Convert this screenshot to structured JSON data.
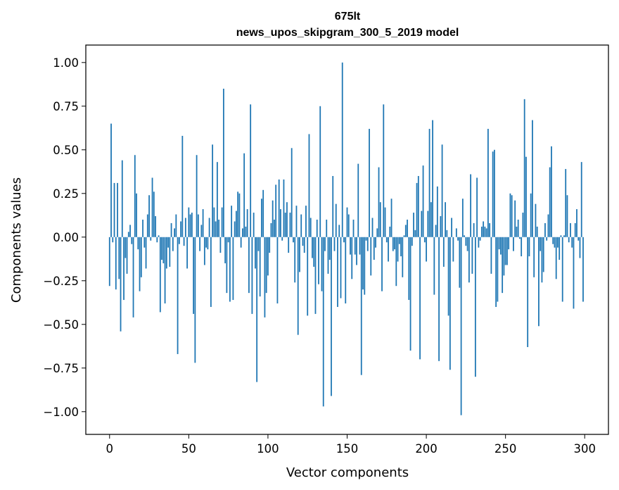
{
  "chart_data": {
    "type": "bar",
    "title": "675lt",
    "subtitle": "news_upos_skipgram_300_5_2019 model",
    "xlabel": "Vector components",
    "ylabel": "Components values",
    "xlim": [
      -15,
      315
    ],
    "ylim": [
      -1.13,
      1.1
    ],
    "xticks": [
      0,
      50,
      100,
      150,
      200,
      250,
      300
    ],
    "yticks": [
      -1.0,
      -0.75,
      -0.5,
      -0.25,
      0.0,
      0.25,
      0.5,
      0.75,
      1.0
    ],
    "ytick_labels": [
      "−1.00",
      "−0.75",
      "−0.50",
      "−0.25",
      "0.00",
      "0.25",
      "0.50",
      "0.75",
      "1.00"
    ],
    "bar_color": "#1f77b4",
    "grid": false,
    "values": [
      -0.28,
      0.65,
      -0.03,
      0.31,
      -0.3,
      0.31,
      -0.24,
      -0.54,
      0.44,
      -0.36,
      -0.12,
      -0.21,
      0.03,
      0.07,
      -0.04,
      -0.46,
      0.47,
      0.25,
      -0.07,
      -0.31,
      -0.23,
      0.1,
      -0.06,
      -0.18,
      0.13,
      0.24,
      -0.02,
      0.34,
      0.26,
      0.12,
      -0.03,
      0.01,
      -0.43,
      -0.13,
      -0.15,
      -0.38,
      -0.18,
      -0.06,
      -0.17,
      0.08,
      -0.08,
      0.05,
      0.13,
      -0.67,
      -0.04,
      0.09,
      0.58,
      -0.05,
      0.11,
      -0.18,
      0.17,
      0.13,
      0.14,
      -0.44,
      -0.72,
      0.47,
      0.13,
      -0.08,
      0.07,
      0.16,
      -0.16,
      -0.06,
      -0.07,
      0.11,
      -0.4,
      0.53,
      0.17,
      0.09,
      0.43,
      0.1,
      -0.09,
      0.17,
      0.85,
      -0.15,
      -0.32,
      -0.03,
      -0.37,
      0.18,
      -0.36,
      0.09,
      0.15,
      0.26,
      0.25,
      -0.06,
      0.05,
      0.48,
      0.06,
      0.16,
      -0.32,
      0.76,
      -0.44,
      0.14,
      -0.18,
      -0.83,
      -0.08,
      -0.34,
      0.22,
      0.27,
      -0.46,
      -0.32,
      -0.22,
      -0.09,
      0.08,
      0.21,
      0.1,
      0.3,
      -0.38,
      0.33,
      0.16,
      -0.02,
      0.33,
      0.14,
      0.2,
      -0.09,
      0.14,
      0.51,
      -0.03,
      -0.26,
      0.18,
      -0.56,
      -0.2,
      0.13,
      -0.05,
      -0.09,
      0.18,
      -0.45,
      0.59,
      0.11,
      -0.12,
      -0.17,
      -0.44,
      0.1,
      -0.27,
      0.75,
      -0.31,
      -0.97,
      -0.08,
      0.1,
      -0.21,
      -0.13,
      -0.91,
      0.35,
      -0.08,
      0.19,
      -0.4,
      0.07,
      -0.35,
      1.0,
      -0.03,
      -0.38,
      0.17,
      0.13,
      -0.1,
      -0.24,
      0.1,
      -0.1,
      -0.16,
      0.42,
      -0.1,
      -0.79,
      -0.3,
      -0.33,
      -0.02,
      -0.08,
      0.62,
      -0.22,
      0.11,
      -0.13,
      -0.06,
      0.05,
      0.4,
      0.2,
      -0.31,
      0.76,
      0.17,
      -0.03,
      -0.14,
      0.06,
      0.22,
      -0.08,
      -0.07,
      -0.28,
      -0.14,
      -0.04,
      -0.11,
      -0.23,
      0.01,
      0.07,
      0.1,
      -0.36,
      -0.65,
      -0.05,
      0.14,
      0.04,
      0.31,
      0.35,
      -0.7,
      0.15,
      0.41,
      -0.03,
      -0.14,
      0.15,
      0.62,
      0.2,
      0.67,
      -0.33,
      0.07,
      0.29,
      -0.71,
      0.12,
      0.53,
      -0.17,
      0.2,
      0.04,
      -0.45,
      -0.76,
      0.11,
      -0.14,
      0.0,
      0.05,
      -0.02,
      -0.29,
      -1.02,
      0.22,
      0.01,
      -0.05,
      -0.08,
      -0.26,
      0.36,
      -0.21,
      0.08,
      -0.8,
      0.34,
      -0.06,
      -0.02,
      0.06,
      0.09,
      0.06,
      0.05,
      0.62,
      0.08,
      -0.21,
      0.49,
      0.5,
      -0.4,
      -0.37,
      -0.07,
      -0.1,
      -0.32,
      -0.22,
      -0.16,
      -0.16,
      -0.07,
      0.25,
      0.24,
      -0.08,
      0.21,
      0.06,
      0.1,
      -0.01,
      -0.11,
      0.14,
      0.79,
      0.46,
      -0.63,
      -0.11,
      0.25,
      0.67,
      -0.23,
      0.19,
      0.06,
      -0.51,
      -0.08,
      -0.26,
      -0.2,
      0.08,
      -0.02,
      0.13,
      0.4,
      0.52,
      -0.04,
      -0.06,
      -0.24,
      -0.06,
      -0.13,
      0.01,
      -0.37,
      0.01,
      0.39,
      0.24,
      -0.03,
      0.08,
      -0.06,
      -0.41,
      0.08,
      0.16,
      -0.02,
      -0.12,
      0.43,
      -0.37
    ]
  }
}
